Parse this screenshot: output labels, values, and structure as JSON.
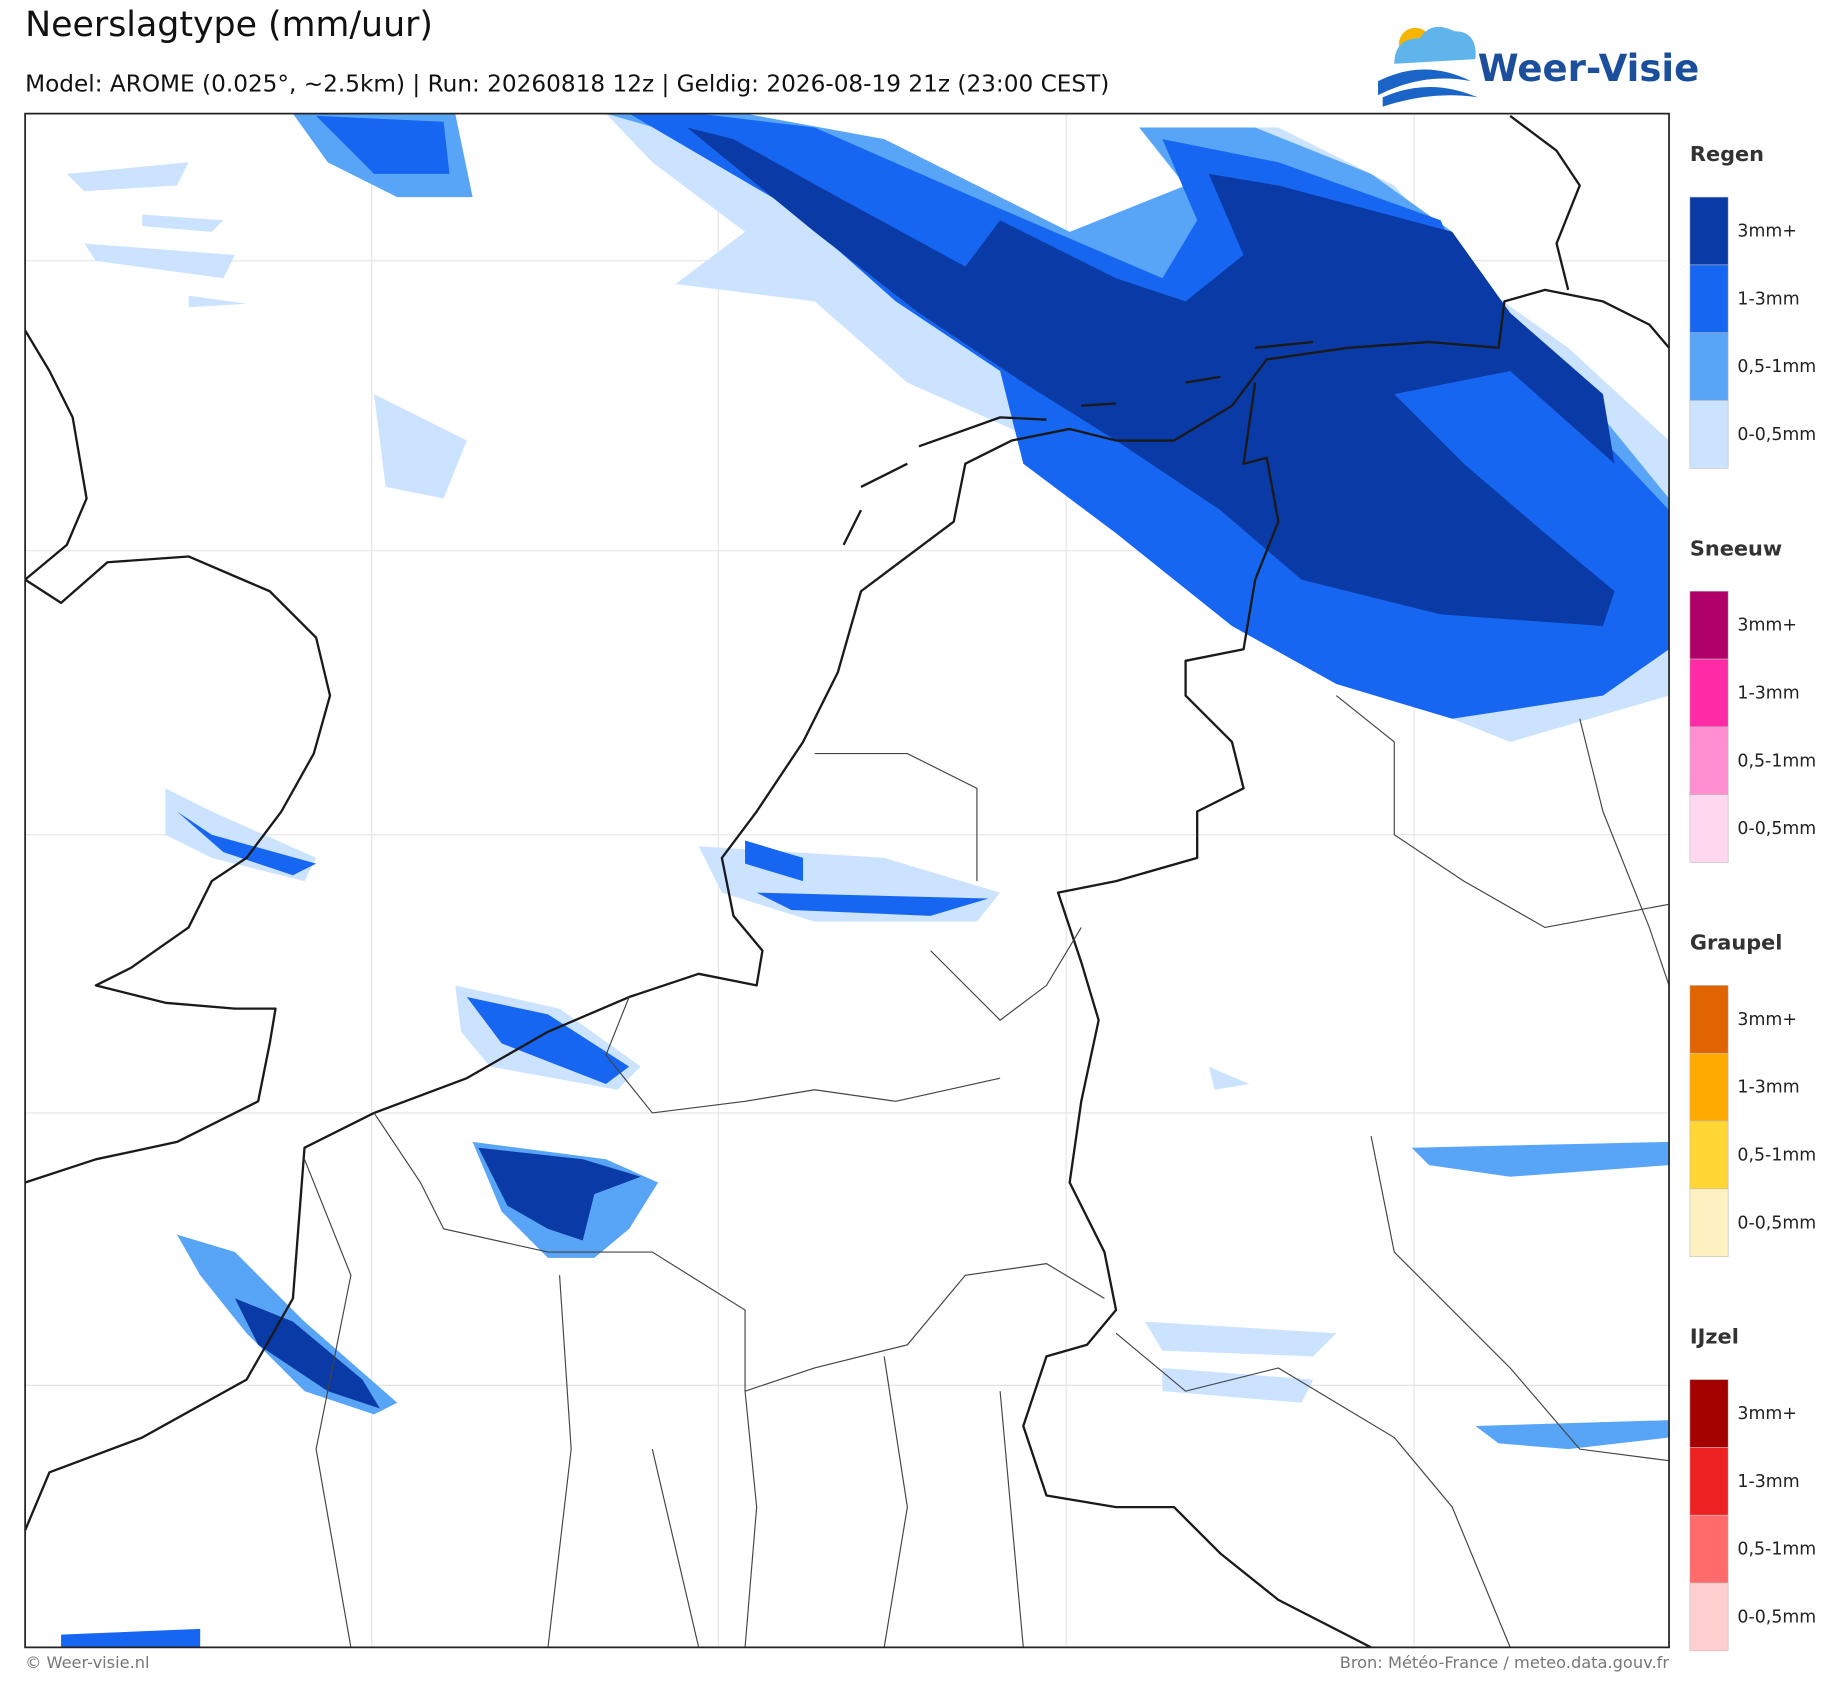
{
  "header": {
    "title": "Neerslagtype (mm/uur)",
    "subtitle": "Model: AROME (0.025°, ~2.5km)  |  Run: 20260818 12z  |  Geldig: 2026-08-19 21z (23:00 CEST)",
    "logo": "Weer-Visie"
  },
  "legend": [
    {
      "title": "Regen",
      "items": [
        {
          "label": "3mm+",
          "color": "#0a3aa6"
        },
        {
          "label": "1-3mm",
          "color": "#1666f2"
        },
        {
          "label": "0,5-1mm",
          "color": "#58a5f7"
        },
        {
          "label": "0-0,5mm",
          "color": "#cbe3ff"
        }
      ]
    },
    {
      "title": "Sneeuw",
      "items": [
        {
          "label": "3mm+",
          "color": "#b0006a"
        },
        {
          "label": "1-3mm",
          "color": "#ff2aa6"
        },
        {
          "label": "0,5-1mm",
          "color": "#ff8fcf"
        },
        {
          "label": "0-0,5mm",
          "color": "#ffd8ef"
        }
      ]
    },
    {
      "title": "Graupel",
      "items": [
        {
          "label": "3mm+",
          "color": "#e06400"
        },
        {
          "label": "1-3mm",
          "color": "#ffaa00"
        },
        {
          "label": "0,5-1mm",
          "color": "#ffd633"
        },
        {
          "label": "0-0,5mm",
          "color": "#fff2c2"
        }
      ]
    },
    {
      "title": "IJzel",
      "items": [
        {
          "label": "3mm+",
          "color": "#a30000"
        },
        {
          "label": "1-3mm",
          "color": "#ee2222"
        },
        {
          "label": "0,5-1mm",
          "color": "#ff6a6a"
        },
        {
          "label": "0-0,5mm",
          "color": "#ffcfcf"
        }
      ]
    }
  ],
  "footer": {
    "left": "© Weer-visie.nl",
    "right": "Bron: Météo-France / meteo.data.gouv.fr"
  }
}
